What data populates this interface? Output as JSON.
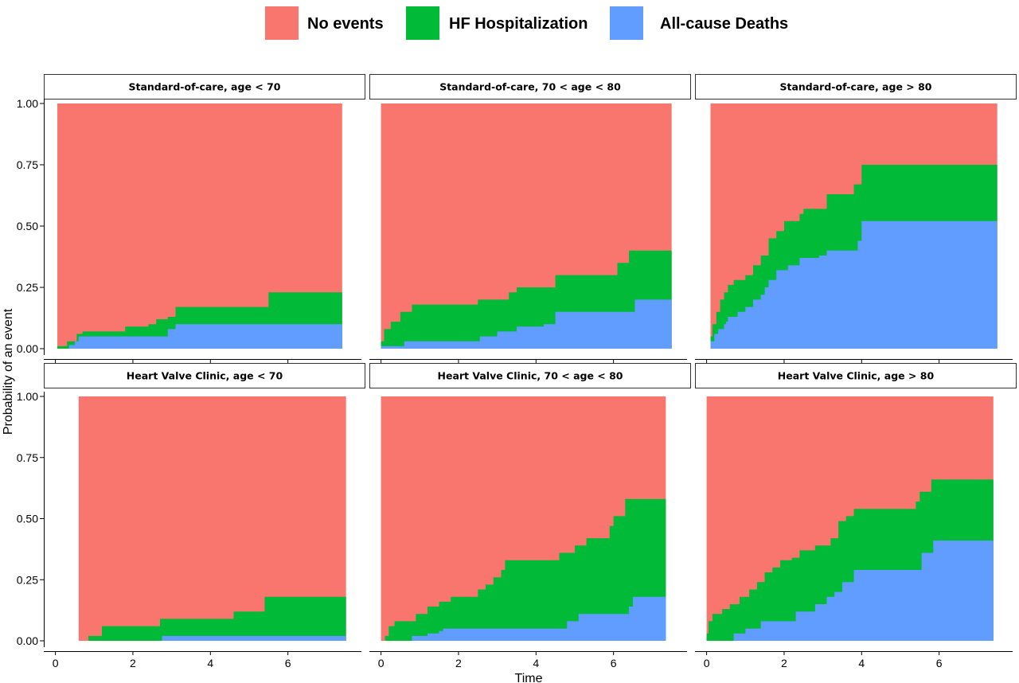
{
  "chart_data": {
    "type": "area",
    "stacked": true,
    "xlabel": "Time",
    "ylabel": "Probability of an event",
    "xlim": [
      -0.3,
      8.0
    ],
    "ylim": [
      0,
      1
    ],
    "x_ticks": [
      0,
      2,
      4,
      6
    ],
    "y_ticks": [
      0,
      0.25,
      0.5,
      0.75,
      1.0
    ],
    "y_tick_labels": [
      "0.00",
      "0.25",
      "0.50",
      "0.75",
      "1.00"
    ],
    "grid": false,
    "legend_position": "top",
    "legend": [
      {
        "name": "No events",
        "color": "#F8766D"
      },
      {
        "name": "HF Hospitalization",
        "color": "#00BA38"
      },
      {
        "name": "All-cause Deaths",
        "color": "#619CFF"
      }
    ],
    "panels": [
      {
        "title": "Standard-of-care, age < 70",
        "x_start": 0.05,
        "x_end": 7.4,
        "deaths": [
          [
            0.05,
            0.0
          ],
          [
            0.35,
            0.015
          ],
          [
            0.5,
            0.03
          ],
          [
            0.6,
            0.05
          ],
          [
            1.5,
            0.05
          ],
          [
            2.75,
            0.05
          ],
          [
            2.9,
            0.08
          ],
          [
            3.1,
            0.1
          ],
          [
            6.1,
            0.1
          ],
          [
            7.4,
            0.1
          ]
        ],
        "death_or_hf": [
          [
            0.05,
            0.01
          ],
          [
            0.3,
            0.03
          ],
          [
            0.55,
            0.06
          ],
          [
            0.7,
            0.07
          ],
          [
            1.4,
            0.07
          ],
          [
            1.8,
            0.09
          ],
          [
            2.4,
            0.1
          ],
          [
            2.6,
            0.12
          ],
          [
            2.9,
            0.13
          ],
          [
            3.1,
            0.17
          ],
          [
            5.4,
            0.17
          ],
          [
            5.5,
            0.23
          ],
          [
            7.4,
            0.23
          ]
        ]
      },
      {
        "title": "Standard-of-care, 70 < age < 80",
        "x_start": 0.0,
        "x_end": 7.5,
        "deaths": [
          [
            0.0,
            0.01
          ],
          [
            0.55,
            0.01
          ],
          [
            0.6,
            0.03
          ],
          [
            2.35,
            0.03
          ],
          [
            2.55,
            0.05
          ],
          [
            3.0,
            0.07
          ],
          [
            3.5,
            0.09
          ],
          [
            4.2,
            0.1
          ],
          [
            4.5,
            0.15
          ],
          [
            6.3,
            0.15
          ],
          [
            6.55,
            0.2
          ],
          [
            7.5,
            0.2
          ]
        ],
        "death_or_hf": [
          [
            0.0,
            0.03
          ],
          [
            0.08,
            0.08
          ],
          [
            0.25,
            0.11
          ],
          [
            0.5,
            0.15
          ],
          [
            0.7,
            0.15
          ],
          [
            0.8,
            0.18
          ],
          [
            2.4,
            0.18
          ],
          [
            2.5,
            0.2
          ],
          [
            3.0,
            0.2
          ],
          [
            3.3,
            0.23
          ],
          [
            3.5,
            0.25
          ],
          [
            4.2,
            0.25
          ],
          [
            4.5,
            0.3
          ],
          [
            5.9,
            0.3
          ],
          [
            6.1,
            0.35
          ],
          [
            6.4,
            0.4
          ],
          [
            7.5,
            0.4
          ]
        ]
      },
      {
        "title": "Standard-of-care, age > 80",
        "x_start": 0.1,
        "x_end": 7.5,
        "deaths": [
          [
            0.1,
            0.03
          ],
          [
            0.2,
            0.06
          ],
          [
            0.3,
            0.08
          ],
          [
            0.45,
            0.1
          ],
          [
            0.5,
            0.11
          ],
          [
            0.55,
            0.13
          ],
          [
            0.8,
            0.15
          ],
          [
            1.0,
            0.17
          ],
          [
            1.2,
            0.2
          ],
          [
            1.4,
            0.22
          ],
          [
            1.5,
            0.25
          ],
          [
            1.6,
            0.28
          ],
          [
            1.8,
            0.32
          ],
          [
            2.1,
            0.34
          ],
          [
            2.4,
            0.37
          ],
          [
            2.9,
            0.38
          ],
          [
            3.1,
            0.4
          ],
          [
            3.6,
            0.4
          ],
          [
            3.9,
            0.44
          ],
          [
            4.0,
            0.52
          ],
          [
            7.5,
            0.52
          ]
        ],
        "death_or_hf": [
          [
            0.1,
            0.05
          ],
          [
            0.15,
            0.1
          ],
          [
            0.25,
            0.15
          ],
          [
            0.35,
            0.2
          ],
          [
            0.45,
            0.23
          ],
          [
            0.55,
            0.26
          ],
          [
            0.7,
            0.28
          ],
          [
            1.0,
            0.3
          ],
          [
            1.2,
            0.34
          ],
          [
            1.4,
            0.38
          ],
          [
            1.6,
            0.45
          ],
          [
            1.8,
            0.48
          ],
          [
            2.0,
            0.52
          ],
          [
            2.4,
            0.55
          ],
          [
            2.5,
            0.57
          ],
          [
            3.0,
            0.57
          ],
          [
            3.1,
            0.63
          ],
          [
            3.6,
            0.63
          ],
          [
            3.8,
            0.67
          ],
          [
            4.0,
            0.75
          ],
          [
            7.5,
            0.75
          ]
        ]
      },
      {
        "title": "Heart Valve Clinic, age < 70",
        "x_start": 0.6,
        "x_end": 7.5,
        "deaths": [
          [
            0.6,
            0.0
          ],
          [
            2.4,
            0.0
          ],
          [
            2.75,
            0.02
          ],
          [
            7.5,
            0.02
          ]
        ],
        "death_or_hf": [
          [
            0.6,
            0.0
          ],
          [
            0.85,
            0.02
          ],
          [
            1.1,
            0.02
          ],
          [
            1.2,
            0.06
          ],
          [
            2.5,
            0.06
          ],
          [
            2.7,
            0.09
          ],
          [
            4.5,
            0.09
          ],
          [
            4.6,
            0.12
          ],
          [
            5.3,
            0.12
          ],
          [
            5.4,
            0.18
          ],
          [
            7.5,
            0.18
          ]
        ]
      },
      {
        "title": "Heart Valve Clinic, 70 < age < 80",
        "x_start": 0.0,
        "x_end": 7.35,
        "deaths": [
          [
            0.0,
            0.0
          ],
          [
            0.45,
            0.0
          ],
          [
            0.8,
            0.02
          ],
          [
            1.2,
            0.03
          ],
          [
            1.5,
            0.04
          ],
          [
            1.6,
            0.05
          ],
          [
            4.6,
            0.05
          ],
          [
            4.8,
            0.08
          ],
          [
            5.0,
            0.08
          ],
          [
            5.1,
            0.11
          ],
          [
            6.25,
            0.11
          ],
          [
            6.4,
            0.14
          ],
          [
            6.5,
            0.18
          ],
          [
            7.35,
            0.18
          ]
        ],
        "death_or_hf": [
          [
            0.0,
            0.0
          ],
          [
            0.1,
            0.02
          ],
          [
            0.2,
            0.06
          ],
          [
            0.35,
            0.08
          ],
          [
            0.6,
            0.08
          ],
          [
            0.9,
            0.11
          ],
          [
            1.2,
            0.14
          ],
          [
            1.5,
            0.16
          ],
          [
            1.8,
            0.18
          ],
          [
            2.4,
            0.18
          ],
          [
            2.5,
            0.21
          ],
          [
            2.7,
            0.23
          ],
          [
            2.9,
            0.26
          ],
          [
            3.1,
            0.29
          ],
          [
            3.2,
            0.33
          ],
          [
            4.5,
            0.33
          ],
          [
            4.6,
            0.36
          ],
          [
            4.9,
            0.36
          ],
          [
            5.0,
            0.39
          ],
          [
            5.3,
            0.42
          ],
          [
            5.75,
            0.42
          ],
          [
            5.9,
            0.47
          ],
          [
            6.0,
            0.51
          ],
          [
            6.25,
            0.51
          ],
          [
            6.3,
            0.58
          ],
          [
            7.35,
            0.58
          ]
        ]
      },
      {
        "title": "Heart Valve Clinic, age > 80",
        "x_start": 0.0,
        "x_end": 7.4,
        "deaths": [
          [
            0.0,
            0.0
          ],
          [
            0.55,
            0.0
          ],
          [
            0.7,
            0.03
          ],
          [
            1.0,
            0.05
          ],
          [
            1.4,
            0.08
          ],
          [
            2.2,
            0.08
          ],
          [
            2.3,
            0.12
          ],
          [
            2.8,
            0.15
          ],
          [
            3.1,
            0.18
          ],
          [
            3.3,
            0.2
          ],
          [
            3.5,
            0.24
          ],
          [
            3.8,
            0.29
          ],
          [
            5.3,
            0.29
          ],
          [
            5.55,
            0.36
          ],
          [
            5.75,
            0.36
          ],
          [
            5.85,
            0.41
          ],
          [
            7.4,
            0.41
          ]
        ],
        "death_or_hf": [
          [
            0.0,
            0.03
          ],
          [
            0.05,
            0.08
          ],
          [
            0.15,
            0.11
          ],
          [
            0.4,
            0.13
          ],
          [
            0.6,
            0.15
          ],
          [
            0.85,
            0.18
          ],
          [
            1.1,
            0.21
          ],
          [
            1.3,
            0.24
          ],
          [
            1.5,
            0.28
          ],
          [
            1.7,
            0.3
          ],
          [
            1.9,
            0.33
          ],
          [
            2.2,
            0.34
          ],
          [
            2.4,
            0.37
          ],
          [
            2.8,
            0.39
          ],
          [
            3.2,
            0.42
          ],
          [
            3.4,
            0.49
          ],
          [
            3.6,
            0.51
          ],
          [
            3.8,
            0.54
          ],
          [
            5.2,
            0.54
          ],
          [
            5.4,
            0.57
          ],
          [
            5.5,
            0.61
          ],
          [
            5.8,
            0.66
          ],
          [
            7.4,
            0.66
          ]
        ]
      }
    ]
  }
}
